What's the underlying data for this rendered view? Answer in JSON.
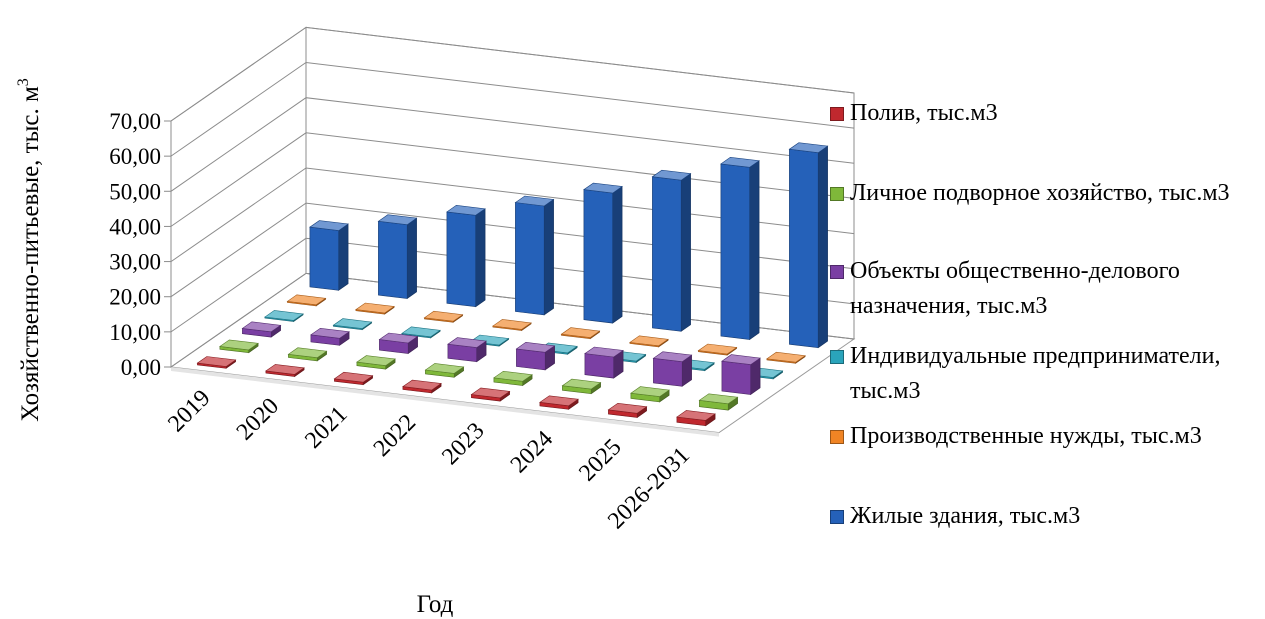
{
  "chart_data": {
    "type": "bar",
    "projection": "3d-column",
    "title": "",
    "xlabel": "Год",
    "ylabel": "Хозяйственно-питьевые, тыс. м",
    "ylabel_sup": "3",
    "ylim": [
      0,
      70
    ],
    "yticks": [
      "0,00",
      "10,00",
      "20,00",
      "30,00",
      "40,00",
      "50,00",
      "60,00",
      "70,00"
    ],
    "grid": true,
    "legend_position": "right",
    "categories": [
      "2019",
      "2020",
      "2021",
      "2022",
      "2023",
      "2024",
      "2025",
      "2026-2031"
    ],
    "series": [
      {
        "name": "Полив, тыс.м3",
        "color": "#c0282e",
        "values": [
          0.5,
          0.6,
          0.7,
          0.8,
          0.9,
          1.0,
          1.2,
          1.5
        ]
      },
      {
        "name": "Личное подворное хозяйство, тыс.м3",
        "color": "#7fb83a",
        "values": [
          0.8,
          0.9,
          1.0,
          1.1,
          1.2,
          1.3,
          1.5,
          1.8
        ]
      },
      {
        "name": "Объекты общественно-делового назначения, тыс.м3",
        "color": "#7a3fa3",
        "values": [
          1.5,
          2.0,
          3.0,
          4.0,
          5.0,
          6.0,
          7.0,
          8.5
        ]
      },
      {
        "name": "Индивидуальные предприниматели, тыс.м3",
        "color": "#2aa4bb",
        "values": [
          0.3,
          0.3,
          0.3,
          0.3,
          0.4,
          0.4,
          0.4,
          0.4
        ]
      },
      {
        "name": "Производственные нужды, тыс.м3",
        "color": "#f08424",
        "values": [
          0.3,
          0.3,
          0.3,
          0.3,
          0.3,
          0.3,
          0.3,
          0.3
        ]
      },
      {
        "name": "Жилые здания, тыс.м3",
        "color": "#2561b9",
        "values": [
          17.0,
          21.0,
          26.0,
          31.0,
          37.0,
          43.0,
          49.0,
          55.5
        ]
      }
    ]
  },
  "legend": {
    "items": [
      {
        "text": "Полив, тыс.м3",
        "color": "#c0282e"
      },
      {
        "text": "Личное подворное хозяйство, тыс.м3",
        "color": "#7fb83a"
      },
      {
        "text": "Объекты общественно-делового назначения, тыс.м3",
        "color": "#7a3fa3"
      },
      {
        "text": "Индивидуальные предприниматели, тыс.м3",
        "color": "#2aa4bb"
      },
      {
        "text": "Производственные нужды, тыс.м3",
        "color": "#f08424"
      },
      {
        "text": "Жилые здания, тыс.м3",
        "color": "#2561b9"
      }
    ]
  }
}
